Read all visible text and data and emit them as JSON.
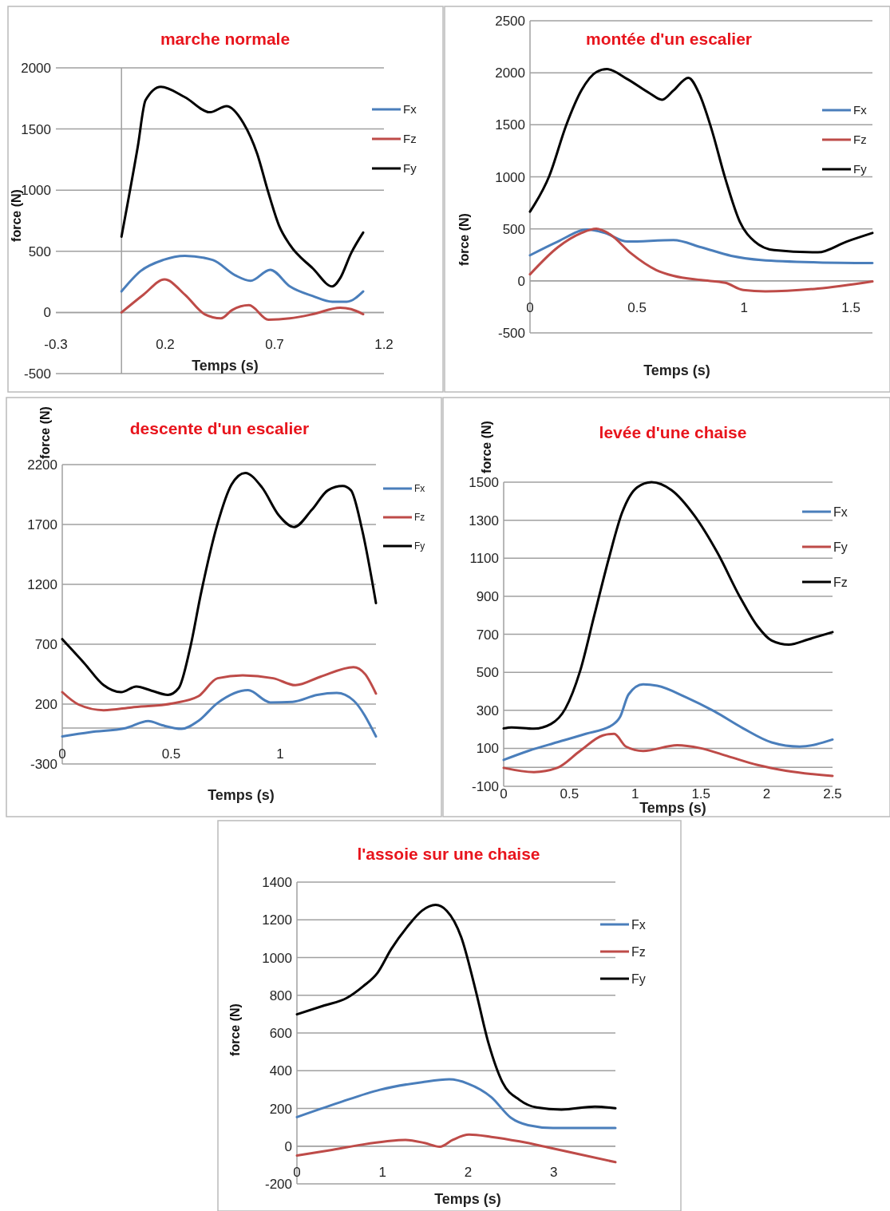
{
  "chart_data": [
    {
      "type": "line",
      "title": "marche normale",
      "xlabel": "Temps (s)",
      "ylabel": "force (N)",
      "xlim": [
        -0.3,
        1.2
      ],
      "xticks": [
        -0.3,
        0.2,
        0.7,
        1.2
      ],
      "ylim": [
        -500,
        2000
      ],
      "yticks": [
        -500,
        0,
        500,
        1000,
        1500,
        2000
      ],
      "grid": "y",
      "legend": "right",
      "series": [
        {
          "name": "Fx",
          "color": "#4a7ebb",
          "x": [
            0,
            0.087,
            0.19,
            0.29,
            0.417,
            0.52,
            0.59,
            0.68,
            0.77,
            0.875,
            0.964,
            1.03,
            1.105
          ],
          "values": [
            172,
            338,
            429,
            463,
            429,
            304,
            259,
            349,
            213,
            134,
            88,
            88,
            172
          ]
        },
        {
          "name": "Fz",
          "color": "#be4b48",
          "x": [
            0,
            0.1,
            0.197,
            0.29,
            0.38,
            0.455,
            0.506,
            0.583,
            0.672,
            0.77,
            0.875,
            1.0,
            1.05,
            1.105
          ],
          "values": [
            0,
            145,
            270,
            145,
            -14,
            -48,
            20,
            59,
            -59,
            -48,
            -14,
            39,
            27,
            -14
          ]
        },
        {
          "name": "Fy",
          "color": "#000000",
          "x": [
            0,
            0.074,
            0.11,
            0.18,
            0.29,
            0.405,
            0.48,
            0.557,
            0.62,
            0.67,
            0.72,
            0.77,
            0.875,
            0.964,
            1.0,
            1.05,
            1.105
          ],
          "values": [
            620,
            1350,
            1735,
            1845,
            1760,
            1637,
            1687,
            1550,
            1300,
            990,
            712,
            553,
            360,
            213,
            281,
            485,
            653
          ]
        }
      ]
    },
    {
      "type": "line",
      "title": "montée d'un escalier",
      "xlabel": "Temps (s)",
      "ylabel": "force (N)",
      "xlim": [
        0,
        1.6
      ],
      "xticks": [
        0,
        0.5,
        1,
        1.5
      ],
      "ylim": [
        -500,
        2500
      ],
      "yticks": [
        -500,
        0,
        500,
        1000,
        1500,
        2000,
        2500
      ],
      "grid": "y",
      "legend": "right",
      "series": [
        {
          "name": "Fx",
          "color": "#4a7ebb",
          "x": [
            0,
            0.13,
            0.267,
            0.35,
            0.455,
            0.67,
            0.8,
            0.94,
            1.08,
            1.345,
            1.6
          ],
          "values": [
            246,
            378,
            493,
            460,
            378,
            392,
            323,
            241,
            200,
            178,
            172
          ]
        },
        {
          "name": "Fz",
          "color": "#be4b48",
          "x": [
            0,
            0.13,
            0.24,
            0.31,
            0.375,
            0.47,
            0.59,
            0.67,
            0.8,
            0.913,
            0.996,
            1.1,
            1.345,
            1.6
          ],
          "values": [
            63,
            323,
            460,
            501,
            446,
            268,
            104,
            49,
            8,
            -19,
            -88,
            -101,
            -74,
            -5
          ]
        },
        {
          "name": "Fy",
          "color": "#000000",
          "x": [
            0,
            0.09,
            0.17,
            0.24,
            0.31,
            0.36,
            0.455,
            0.56,
            0.617,
            0.67,
            0.74,
            0.79,
            0.846,
            0.913,
            0.98,
            1.05,
            1.14,
            1.345,
            1.48,
            1.6
          ],
          "values": [
            665,
            1008,
            1501,
            1830,
            2007,
            2035,
            1939,
            1802,
            1741,
            1829,
            1952,
            1802,
            1473,
            980,
            570,
            378,
            296,
            274,
            378,
            460
          ]
        }
      ]
    },
    {
      "type": "line",
      "title": "descente d'un escalier",
      "xlabel": "Temps (s)",
      "ylabel": "force (N)",
      "xlim": [
        0,
        1.44
      ],
      "xticks": [
        0,
        0.5,
        1
      ],
      "ylim": [
        -300,
        2200
      ],
      "yticks": [
        -300,
        200,
        700,
        1200,
        1700,
        2200
      ],
      "grid": "y",
      "legend": "right",
      "series": [
        {
          "name": "Fx",
          "color": "#4a7ebb",
          "x": [
            0,
            0.127,
            0.293,
            0.395,
            0.459,
            0.548,
            0.624,
            0.713,
            0.853,
            0.955,
            1.057,
            1.17,
            1.26,
            1.337,
            1.44
          ],
          "values": [
            -70,
            -35,
            0,
            58,
            23,
            -7,
            58,
            209,
            316,
            214,
            219,
            277,
            293,
            230,
            -70
          ]
        },
        {
          "name": "Fz",
          "color": "#be4b48",
          "x": [
            0,
            0.076,
            0.19,
            0.318,
            0.51,
            0.624,
            0.713,
            0.828,
            0.968,
            1.07,
            1.185,
            1.337,
            1.39,
            1.44
          ],
          "values": [
            300,
            195,
            149,
            172,
            207,
            265,
            416,
            440,
            416,
            358,
            428,
            509,
            451,
            288
          ]
        },
        {
          "name": "Fy",
          "color": "#000000",
          "x": [
            0,
            0.1,
            0.19,
            0.27,
            0.34,
            0.41,
            0.485,
            0.535,
            0.586,
            0.637,
            0.713,
            0.777,
            0.84,
            0.917,
            0.994,
            1.064,
            1.146,
            1.22,
            1.287,
            1.325,
            1.376,
            1.44
          ],
          "values": [
            742,
            544,
            358,
            300,
            347,
            312,
            277,
            335,
            660,
            1126,
            1707,
            2033,
            2130,
            2009,
            1777,
            1679,
            1823,
            1986,
            2021,
            1986,
            1660,
            1044
          ]
        }
      ]
    },
    {
      "type": "line",
      "title": "levée d'une chaise",
      "xlabel": "Temps (s)",
      "ylabel": "force (N)",
      "xlim": [
        0,
        2.5
      ],
      "xticks": [
        0,
        0.5,
        1,
        1.5,
        2,
        2.5
      ],
      "ylim": [
        -100,
        1500
      ],
      "yticks": [
        -100,
        100,
        300,
        500,
        700,
        900,
        1100,
        1300,
        1500
      ],
      "grid": "y",
      "legend": "right",
      "series": [
        {
          "name": "Fx",
          "color": "#4a7ebb",
          "x": [
            0,
            0.19,
            0.407,
            0.624,
            0.82,
            0.885,
            0.95,
            1.06,
            1.167,
            1.385,
            1.6,
            1.82,
            2.037,
            2.25,
            2.5
          ],
          "values": [
            39,
            87,
            132,
            176,
            220,
            265,
            384,
            436,
            429,
            369,
            295,
            205,
            131,
            109,
            146
          ]
        },
        {
          "name": "Fy",
          "color": "#be4b48",
          "x": [
            0,
            0.23,
            0.407,
            0.58,
            0.754,
            0.84,
            0.93,
            1.06,
            1.32,
            1.493,
            1.71,
            1.93,
            2.145,
            2.5
          ],
          "values": [
            -3,
            -25,
            -3,
            86,
            168,
            176,
            109,
            86,
            116,
            101,
            57,
            12,
            -18,
            -45
          ]
        },
        {
          "name": "Fz",
          "color": "#000000",
          "x": [
            0,
            0.06,
            0.23,
            0.36,
            0.47,
            0.58,
            0.69,
            0.8,
            0.9,
            1.015,
            1.124,
            1.276,
            1.45,
            1.624,
            1.8,
            1.93,
            2.037,
            2.167,
            2.32,
            2.5
          ],
          "values": [
            205,
            210,
            203,
            228,
            310,
            504,
            802,
            1100,
            1339,
            1473,
            1500,
            1458,
            1324,
            1130,
            891,
            742,
            667,
            645,
            674,
            711
          ]
        }
      ]
    },
    {
      "type": "line",
      "title": "l'assoie sur une chaise",
      "xlabel": "Temps (s)",
      "ylabel": "force (N)",
      "xlim": [
        0,
        3.72
      ],
      "xticks": [
        0,
        1,
        2,
        3
      ],
      "ylim": [
        -200,
        1400
      ],
      "yticks": [
        -200,
        0,
        200,
        400,
        600,
        800,
        1000,
        1200,
        1400
      ],
      "grid": "y",
      "legend": "right",
      "series": [
        {
          "name": "Fx",
          "color": "#4a7ebb",
          "x": [
            0,
            0.48,
            0.97,
            1.46,
            1.78,
            2.0,
            2.27,
            2.5,
            2.7,
            2.99,
            3.72
          ],
          "values": [
            154,
            229,
            299,
            339,
            354,
            331,
            260,
            150,
            111,
            96,
            96
          ]
        },
        {
          "name": "Fz",
          "color": "#be4b48",
          "x": [
            0,
            0.38,
            0.775,
            1.04,
            1.26,
            1.49,
            1.67,
            1.82,
            2.01,
            2.27,
            2.6,
            2.93,
            3.25,
            3.72
          ],
          "values": [
            -50,
            -22,
            9,
            25,
            33,
            17,
            -3,
            33,
            61,
            49,
            25,
            -6,
            -38,
            -85
          ]
        },
        {
          "name": "Fy",
          "color": "#000000",
          "x": [
            0,
            0.32,
            0.58,
            0.775,
            0.94,
            1.1,
            1.3,
            1.46,
            1.62,
            1.75,
            1.92,
            2.08,
            2.24,
            2.4,
            2.6,
            2.8,
            3.09,
            3.48,
            3.72
          ],
          "values": [
            699,
            746,
            785,
            848,
            918,
            1044,
            1169,
            1248,
            1279,
            1248,
            1107,
            840,
            542,
            339,
            245,
            205,
            194,
            210,
            201
          ]
        }
      ]
    }
  ]
}
